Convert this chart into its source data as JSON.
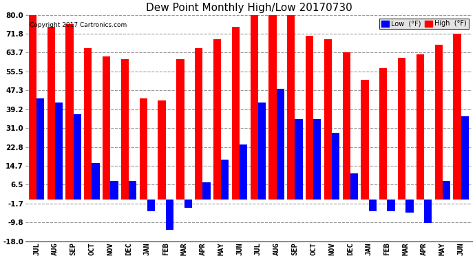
{
  "title": "Dew Point Monthly High/Low 20170730",
  "copyright": "Copyright 2017 Cartronics.com",
  "months": [
    "JUL",
    "AUG",
    "SEP",
    "OCT",
    "NOV",
    "DEC",
    "JAN",
    "FEB",
    "MAR",
    "APR",
    "MAY",
    "JUN",
    "JUL",
    "AUG",
    "SEP",
    "OCT",
    "NOV",
    "DEC",
    "JAN",
    "FEB",
    "MAR",
    "APR",
    "MAY",
    "JUN"
  ],
  "high_values": [
    80.0,
    75.0,
    76.0,
    65.5,
    62.0,
    61.0,
    44.0,
    43.0,
    61.0,
    65.5,
    69.5,
    75.0,
    80.0,
    80.0,
    80.0,
    71.0,
    69.5,
    63.7,
    52.0,
    57.0,
    61.5,
    63.0,
    67.0,
    72.0
  ],
  "low_values": [
    44.0,
    42.0,
    37.0,
    15.8,
    8.0,
    8.0,
    -5.0,
    -13.0,
    -3.5,
    7.5,
    17.5,
    24.0,
    42.0,
    48.0,
    35.0,
    35.0,
    29.0,
    11.5,
    -5.0,
    -5.0,
    -5.5,
    -10.0,
    8.0,
    36.0
  ],
  "ylim": [
    -18.0,
    80.0
  ],
  "yticks": [
    -18.0,
    -9.8,
    -1.7,
    6.5,
    14.7,
    22.8,
    31.0,
    39.2,
    47.3,
    55.5,
    63.7,
    71.8,
    80.0
  ],
  "high_color": "#ff0000",
  "low_color": "#0000ff",
  "background_color": "#ffffff",
  "grid_color": "#999999",
  "title_fontsize": 11,
  "bar_width": 0.42,
  "figsize": [
    6.9,
    3.75
  ],
  "dpi": 100
}
